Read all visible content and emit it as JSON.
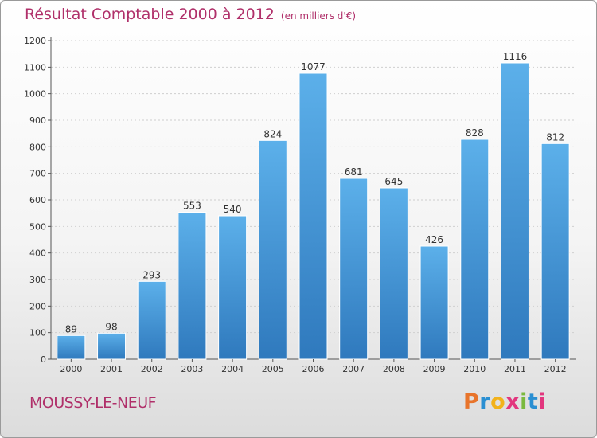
{
  "header": {
    "title": "Résultat Comptable 2000 à 2012",
    "unit_note": "(en milliers d'€)"
  },
  "footer": {
    "commune": "MOUSSY-LE-NEUF",
    "logo_letters": [
      "P",
      "r",
      "o",
      "x",
      "i",
      "t",
      "i"
    ]
  },
  "colors": {
    "bar": "#4f9fd9",
    "bar_light": "#5cb0ea",
    "bar_dark": "#2f79bd",
    "title": "#b0306a",
    "gridline": "#cfcfcf",
    "logo": [
      "#e8742b",
      "#2a8fd2",
      "#f2b21b",
      "#e2367e",
      "#7ab93e",
      "#2a8fd2",
      "#e2367e"
    ]
  },
  "chart_data": {
    "type": "bar",
    "title": "Résultat Comptable 2000 à 2012",
    "subtitle": "(en milliers d'€)",
    "xlabel": "",
    "ylabel": "",
    "categories": [
      "2000",
      "2001",
      "2002",
      "2003",
      "2004",
      "2005",
      "2006",
      "2007",
      "2008",
      "2009",
      "2010",
      "2011",
      "2012"
    ],
    "values": [
      89,
      98,
      293,
      553,
      540,
      824,
      1077,
      681,
      645,
      426,
      828,
      1116,
      812
    ],
    "ylim": [
      0,
      1200
    ],
    "yticks": [
      0,
      100,
      200,
      300,
      400,
      500,
      600,
      700,
      800,
      900,
      1000,
      1100,
      1200
    ],
    "grid": true,
    "data_labels": true
  }
}
